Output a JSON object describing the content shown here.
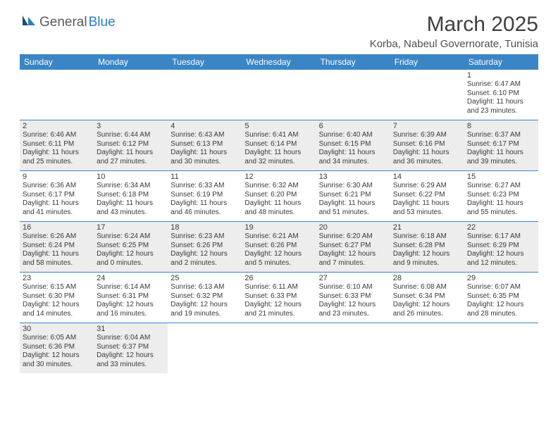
{
  "header": {
    "logo_general": "General",
    "logo_blue": "Blue",
    "month_title": "March 2025",
    "location": "Korba, Nabeul Governorate, Tunisia"
  },
  "colors": {
    "header_bg": "#3a85c6",
    "header_text": "#ffffff",
    "grey_cell": "#ededed",
    "cell_border": "#3a85c6",
    "text": "#3a3a3a",
    "logo_grey": "#5a5a5a",
    "logo_blue": "#2a7fbf",
    "title_text": "#404040"
  },
  "weekdays": [
    "Sunday",
    "Monday",
    "Tuesday",
    "Wednesday",
    "Thursday",
    "Friday",
    "Saturday"
  ],
  "cells": [
    {
      "r": 0,
      "c": 0,
      "blank": true
    },
    {
      "r": 0,
      "c": 1,
      "blank": true
    },
    {
      "r": 0,
      "c": 2,
      "blank": true
    },
    {
      "r": 0,
      "c": 3,
      "blank": true
    },
    {
      "r": 0,
      "c": 4,
      "blank": true
    },
    {
      "r": 0,
      "c": 5,
      "blank": true
    },
    {
      "r": 0,
      "c": 6,
      "day": "1",
      "sunrise": "Sunrise: 6:47 AM",
      "sunset": "Sunset: 6:10 PM",
      "dl1": "Daylight: 11 hours",
      "dl2": "and 23 minutes."
    },
    {
      "r": 1,
      "c": 0,
      "grey": true,
      "day": "2",
      "sunrise": "Sunrise: 6:46 AM",
      "sunset": "Sunset: 6:11 PM",
      "dl1": "Daylight: 11 hours",
      "dl2": "and 25 minutes."
    },
    {
      "r": 1,
      "c": 1,
      "grey": true,
      "day": "3",
      "sunrise": "Sunrise: 6:44 AM",
      "sunset": "Sunset: 6:12 PM",
      "dl1": "Daylight: 11 hours",
      "dl2": "and 27 minutes."
    },
    {
      "r": 1,
      "c": 2,
      "grey": true,
      "day": "4",
      "sunrise": "Sunrise: 6:43 AM",
      "sunset": "Sunset: 6:13 PM",
      "dl1": "Daylight: 11 hours",
      "dl2": "and 30 minutes."
    },
    {
      "r": 1,
      "c": 3,
      "grey": true,
      "day": "5",
      "sunrise": "Sunrise: 6:41 AM",
      "sunset": "Sunset: 6:14 PM",
      "dl1": "Daylight: 11 hours",
      "dl2": "and 32 minutes."
    },
    {
      "r": 1,
      "c": 4,
      "grey": true,
      "day": "6",
      "sunrise": "Sunrise: 6:40 AM",
      "sunset": "Sunset: 6:15 PM",
      "dl1": "Daylight: 11 hours",
      "dl2": "and 34 minutes."
    },
    {
      "r": 1,
      "c": 5,
      "grey": true,
      "day": "7",
      "sunrise": "Sunrise: 6:39 AM",
      "sunset": "Sunset: 6:16 PM",
      "dl1": "Daylight: 11 hours",
      "dl2": "and 36 minutes."
    },
    {
      "r": 1,
      "c": 6,
      "grey": true,
      "day": "8",
      "sunrise": "Sunrise: 6:37 AM",
      "sunset": "Sunset: 6:17 PM",
      "dl1": "Daylight: 11 hours",
      "dl2": "and 39 minutes."
    },
    {
      "r": 2,
      "c": 0,
      "day": "9",
      "sunrise": "Sunrise: 6:36 AM",
      "sunset": "Sunset: 6:17 PM",
      "dl1": "Daylight: 11 hours",
      "dl2": "and 41 minutes."
    },
    {
      "r": 2,
      "c": 1,
      "day": "10",
      "sunrise": "Sunrise: 6:34 AM",
      "sunset": "Sunset: 6:18 PM",
      "dl1": "Daylight: 11 hours",
      "dl2": "and 43 minutes."
    },
    {
      "r": 2,
      "c": 2,
      "day": "11",
      "sunrise": "Sunrise: 6:33 AM",
      "sunset": "Sunset: 6:19 PM",
      "dl1": "Daylight: 11 hours",
      "dl2": "and 46 minutes."
    },
    {
      "r": 2,
      "c": 3,
      "day": "12",
      "sunrise": "Sunrise: 6:32 AM",
      "sunset": "Sunset: 6:20 PM",
      "dl1": "Daylight: 11 hours",
      "dl2": "and 48 minutes."
    },
    {
      "r": 2,
      "c": 4,
      "day": "13",
      "sunrise": "Sunrise: 6:30 AM",
      "sunset": "Sunset: 6:21 PM",
      "dl1": "Daylight: 11 hours",
      "dl2": "and 51 minutes."
    },
    {
      "r": 2,
      "c": 5,
      "day": "14",
      "sunrise": "Sunrise: 6:29 AM",
      "sunset": "Sunset: 6:22 PM",
      "dl1": "Daylight: 11 hours",
      "dl2": "and 53 minutes."
    },
    {
      "r": 2,
      "c": 6,
      "day": "15",
      "sunrise": "Sunrise: 6:27 AM",
      "sunset": "Sunset: 6:23 PM",
      "dl1": "Daylight: 11 hours",
      "dl2": "and 55 minutes."
    },
    {
      "r": 3,
      "c": 0,
      "grey": true,
      "day": "16",
      "sunrise": "Sunrise: 6:26 AM",
      "sunset": "Sunset: 6:24 PM",
      "dl1": "Daylight: 11 hours",
      "dl2": "and 58 minutes."
    },
    {
      "r": 3,
      "c": 1,
      "grey": true,
      "day": "17",
      "sunrise": "Sunrise: 6:24 AM",
      "sunset": "Sunset: 6:25 PM",
      "dl1": "Daylight: 12 hours",
      "dl2": "and 0 minutes."
    },
    {
      "r": 3,
      "c": 2,
      "grey": true,
      "day": "18",
      "sunrise": "Sunrise: 6:23 AM",
      "sunset": "Sunset: 6:26 PM",
      "dl1": "Daylight: 12 hours",
      "dl2": "and 2 minutes."
    },
    {
      "r": 3,
      "c": 3,
      "grey": true,
      "day": "19",
      "sunrise": "Sunrise: 6:21 AM",
      "sunset": "Sunset: 6:26 PM",
      "dl1": "Daylight: 12 hours",
      "dl2": "and 5 minutes."
    },
    {
      "r": 3,
      "c": 4,
      "grey": true,
      "day": "20",
      "sunrise": "Sunrise: 6:20 AM",
      "sunset": "Sunset: 6:27 PM",
      "dl1": "Daylight: 12 hours",
      "dl2": "and 7 minutes."
    },
    {
      "r": 3,
      "c": 5,
      "grey": true,
      "day": "21",
      "sunrise": "Sunrise: 6:18 AM",
      "sunset": "Sunset: 6:28 PM",
      "dl1": "Daylight: 12 hours",
      "dl2": "and 9 minutes."
    },
    {
      "r": 3,
      "c": 6,
      "grey": true,
      "day": "22",
      "sunrise": "Sunrise: 6:17 AM",
      "sunset": "Sunset: 6:29 PM",
      "dl1": "Daylight: 12 hours",
      "dl2": "and 12 minutes."
    },
    {
      "r": 4,
      "c": 0,
      "day": "23",
      "sunrise": "Sunrise: 6:15 AM",
      "sunset": "Sunset: 6:30 PM",
      "dl1": "Daylight: 12 hours",
      "dl2": "and 14 minutes."
    },
    {
      "r": 4,
      "c": 1,
      "day": "24",
      "sunrise": "Sunrise: 6:14 AM",
      "sunset": "Sunset: 6:31 PM",
      "dl1": "Daylight: 12 hours",
      "dl2": "and 16 minutes."
    },
    {
      "r": 4,
      "c": 2,
      "day": "25",
      "sunrise": "Sunrise: 6:13 AM",
      "sunset": "Sunset: 6:32 PM",
      "dl1": "Daylight: 12 hours",
      "dl2": "and 19 minutes."
    },
    {
      "r": 4,
      "c": 3,
      "day": "26",
      "sunrise": "Sunrise: 6:11 AM",
      "sunset": "Sunset: 6:33 PM",
      "dl1": "Daylight: 12 hours",
      "dl2": "and 21 minutes."
    },
    {
      "r": 4,
      "c": 4,
      "day": "27",
      "sunrise": "Sunrise: 6:10 AM",
      "sunset": "Sunset: 6:33 PM",
      "dl1": "Daylight: 12 hours",
      "dl2": "and 23 minutes."
    },
    {
      "r": 4,
      "c": 5,
      "day": "28",
      "sunrise": "Sunrise: 6:08 AM",
      "sunset": "Sunset: 6:34 PM",
      "dl1": "Daylight: 12 hours",
      "dl2": "and 26 minutes."
    },
    {
      "r": 4,
      "c": 6,
      "day": "29",
      "sunrise": "Sunrise: 6:07 AM",
      "sunset": "Sunset: 6:35 PM",
      "dl1": "Daylight: 12 hours",
      "dl2": "and 28 minutes."
    },
    {
      "r": 5,
      "c": 0,
      "grey": true,
      "day": "30",
      "sunrise": "Sunrise: 6:05 AM",
      "sunset": "Sunset: 6:36 PM",
      "dl1": "Daylight: 12 hours",
      "dl2": "and 30 minutes."
    },
    {
      "r": 5,
      "c": 1,
      "grey": true,
      "day": "31",
      "sunrise": "Sunrise: 6:04 AM",
      "sunset": "Sunset: 6:37 PM",
      "dl1": "Daylight: 12 hours",
      "dl2": "and 33 minutes."
    },
    {
      "r": 5,
      "c": 2,
      "blank": true
    },
    {
      "r": 5,
      "c": 3,
      "blank": true
    },
    {
      "r": 5,
      "c": 4,
      "blank": true
    },
    {
      "r": 5,
      "c": 5,
      "blank": true
    },
    {
      "r": 5,
      "c": 6,
      "blank": true
    }
  ]
}
